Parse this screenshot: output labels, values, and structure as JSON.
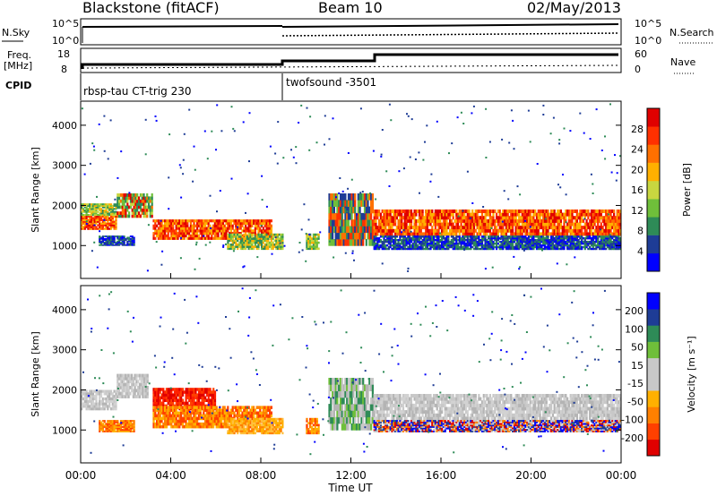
{
  "header": {
    "station": "Blackstone (fitACF)",
    "beam": "Beam 10",
    "date": "02/May/2013"
  },
  "aux_panels": {
    "sky_label": "N.Sky",
    "sky_ticks": [
      "10^5",
      "10^0"
    ],
    "search_label": "N.Search",
    "search_ticks": [
      "10^5",
      "10^0"
    ],
    "freq_label": "Freq.",
    "freq_unit": "[MHz]",
    "freq_ticks": [
      "18",
      "8"
    ],
    "nave_label": "Nave",
    "nave_ticks": [
      "60",
      "0"
    ],
    "cpid_label": "CPID",
    "cpid_1": "rbsp-tau CT-trig 230",
    "cpid_2": "twofsound -3501"
  },
  "chart_data": [
    {
      "type": "heatmap",
      "name": "power",
      "ylabel": "Slant Range [km]",
      "ylim": [
        180,
        4600
      ],
      "yticks": [
        "1000",
        "2000",
        "3000",
        "4000"
      ],
      "xlim": [
        0,
        24
      ],
      "colorbar": {
        "label": "Power [dB]",
        "ticks": [
          "28",
          "24",
          "20",
          "16",
          "12",
          "8",
          "4"
        ],
        "colors": [
          "#0000ff",
          "#1e3c96",
          "#2e8b57",
          "#6fbf3a",
          "#c8d640",
          "#ffb000",
          "#ff7000",
          "#ff3000",
          "#e00000"
        ]
      },
      "bands": [
        {
          "t0": 0.0,
          "t1": 1.6,
          "r0": 1400,
          "r1": 1750,
          "level": "high"
        },
        {
          "t0": 0.0,
          "t1": 1.6,
          "r0": 1750,
          "r1": 2050,
          "level": "mid"
        },
        {
          "t0": 1.6,
          "t1": 3.2,
          "r0": 1700,
          "r1": 2300,
          "level": "mixed"
        },
        {
          "t0": 0.8,
          "t1": 2.4,
          "r0": 1000,
          "r1": 1250,
          "level": "low"
        },
        {
          "t0": 3.2,
          "t1": 8.5,
          "r0": 1150,
          "r1": 1650,
          "level": "high"
        },
        {
          "t0": 6.5,
          "t1": 9.0,
          "r0": 900,
          "r1": 1300,
          "level": "mid"
        },
        {
          "t0": 10.0,
          "t1": 10.6,
          "r0": 900,
          "r1": 1300,
          "level": "mid"
        },
        {
          "t0": 11.0,
          "t1": 13.0,
          "r0": 1000,
          "r1": 2300,
          "level": "decay"
        },
        {
          "t0": 13.0,
          "t1": 24.0,
          "r0": 1250,
          "r1": 1900,
          "level": "high"
        },
        {
          "t0": 13.0,
          "t1": 24.0,
          "r0": 900,
          "r1": 1250,
          "level": "low"
        }
      ]
    },
    {
      "type": "heatmap",
      "name": "velocity",
      "ylabel": "Slant Range [km]",
      "ylim": [
        180,
        4600
      ],
      "yticks": [
        "1000",
        "2000",
        "3000",
        "4000"
      ],
      "xticks": [
        "00:00",
        "04:00",
        "08:00",
        "12:00",
        "16:00",
        "20:00",
        "00:00"
      ],
      "xlabel": "Time UT",
      "xlim": [
        0,
        24
      ],
      "colorbar": {
        "label": "Velocity [m s⁻¹]",
        "ticks": [
          "200",
          "100",
          "50",
          "15",
          "-15",
          "-50",
          "-100",
          "-200"
        ],
        "colors": [
          "#e00000",
          "#ff4000",
          "#ff8000",
          "#ffb000",
          "#c8c8c8",
          "#c8c8c8",
          "#6fbf3a",
          "#2e8b57",
          "#1e3c96",
          "#0000ff"
        ]
      },
      "bands": [
        {
          "t0": 0.0,
          "t1": 1.6,
          "r0": 1500,
          "r1": 2000,
          "level": "gray"
        },
        {
          "t0": 1.6,
          "t1": 3.0,
          "r0": 1800,
          "r1": 2400,
          "level": "gray"
        },
        {
          "t0": 0.8,
          "t1": 2.4,
          "r0": 950,
          "r1": 1250,
          "level": "orange"
        },
        {
          "t0": 3.2,
          "t1": 6.0,
          "r0": 1500,
          "r1": 2050,
          "level": "red"
        },
        {
          "t0": 3.2,
          "t1": 8.5,
          "r0": 1050,
          "r1": 1600,
          "level": "orange"
        },
        {
          "t0": 6.5,
          "t1": 9.0,
          "r0": 900,
          "r1": 1300,
          "level": "lightorange"
        },
        {
          "t0": 10.0,
          "t1": 10.6,
          "r0": 900,
          "r1": 1300,
          "level": "orange"
        },
        {
          "t0": 11.0,
          "t1": 13.0,
          "r0": 1000,
          "r1": 2300,
          "level": "greengray"
        },
        {
          "t0": 13.0,
          "t1": 24.0,
          "r0": 1250,
          "r1": 1900,
          "level": "gray"
        },
        {
          "t0": 13.0,
          "t1": 24.0,
          "r0": 950,
          "r1": 1250,
          "level": "mixedvel"
        }
      ]
    }
  ]
}
